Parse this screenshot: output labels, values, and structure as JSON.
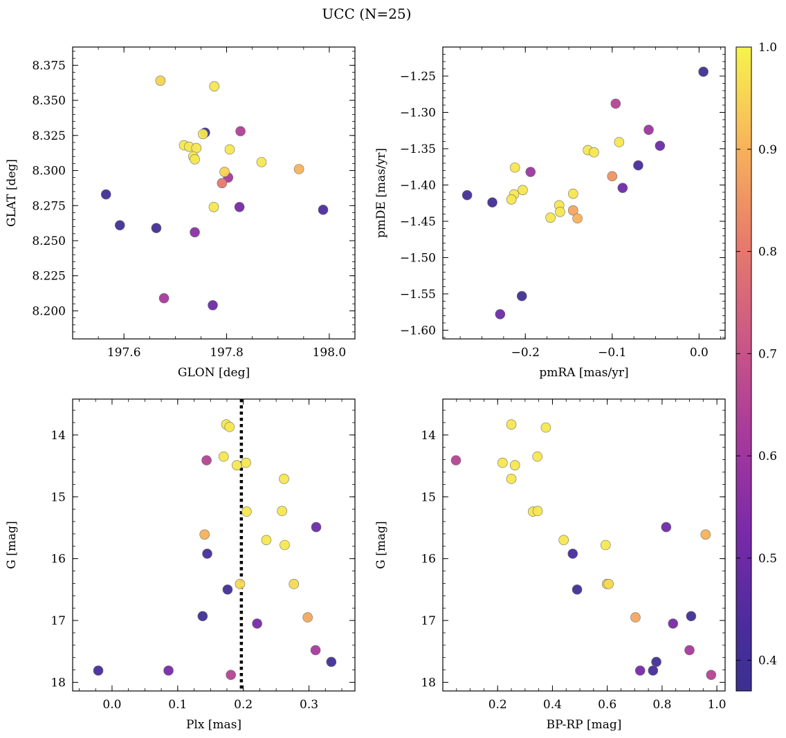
{
  "title": "UCC (N=25)",
  "colorbar": {
    "colormap": "plasma",
    "min": 0.37,
    "max": 1.0,
    "ticks": [
      0.4,
      0.5,
      0.6,
      0.7,
      0.8,
      0.9,
      1.0
    ],
    "tick_labels": [
      "0.4",
      "0.5",
      "0.6",
      "0.7",
      "0.8",
      "0.9",
      "1.0"
    ]
  },
  "chart_data": [
    {
      "type": "scatter",
      "xlabel": "GLON [deg]",
      "ylabel": "GLAT [deg]",
      "xlim": [
        197.5,
        198.05
      ],
      "ylim": [
        8.18,
        8.388
      ],
      "xticks": [
        197.6,
        197.8,
        198.0
      ],
      "xtick_labels": [
        "197.6",
        "197.8",
        "198.0"
      ],
      "yticks": [
        8.2,
        8.225,
        8.25,
        8.275,
        8.3,
        8.325,
        8.35,
        8.375
      ],
      "ytick_labels": [
        "8.200",
        "8.225",
        "8.250",
        "8.275",
        "8.300",
        "8.325",
        "8.350",
        "8.375"
      ],
      "y_inverted": false,
      "points": [
        {
          "x": 197.565,
          "y": 8.283,
          "c": 0.4
        },
        {
          "x": 197.592,
          "y": 8.261,
          "c": 0.4
        },
        {
          "x": 197.663,
          "y": 8.259,
          "c": 0.4
        },
        {
          "x": 197.758,
          "y": 8.327,
          "c": 0.4
        },
        {
          "x": 197.988,
          "y": 8.272,
          "c": 0.44
        },
        {
          "x": 197.671,
          "y": 8.364,
          "c": 0.95
        },
        {
          "x": 197.776,
          "y": 8.36,
          "c": 0.98
        },
        {
          "x": 197.754,
          "y": 8.326,
          "c": 0.98
        },
        {
          "x": 197.827,
          "y": 8.328,
          "c": 0.64
        },
        {
          "x": 197.717,
          "y": 8.318,
          "c": 0.98
        },
        {
          "x": 197.727,
          "y": 8.317,
          "c": 0.98
        },
        {
          "x": 197.741,
          "y": 8.316,
          "c": 0.98
        },
        {
          "x": 197.806,
          "y": 8.315,
          "c": 0.98
        },
        {
          "x": 197.735,
          "y": 8.31,
          "c": 0.98
        },
        {
          "x": 197.738,
          "y": 8.308,
          "c": 0.98
        },
        {
          "x": 197.868,
          "y": 8.306,
          "c": 0.98
        },
        {
          "x": 197.941,
          "y": 8.301,
          "c": 0.9
        },
        {
          "x": 197.796,
          "y": 8.299,
          "c": 0.95
        },
        {
          "x": 197.803,
          "y": 8.295,
          "c": 0.62
        },
        {
          "x": 197.791,
          "y": 8.291,
          "c": 0.8
        },
        {
          "x": 197.775,
          "y": 8.274,
          "c": 0.98
        },
        {
          "x": 197.825,
          "y": 8.274,
          "c": 0.52
        },
        {
          "x": 197.738,
          "y": 8.256,
          "c": 0.56
        },
        {
          "x": 197.678,
          "y": 8.209,
          "c": 0.62
        },
        {
          "x": 197.773,
          "y": 8.204,
          "c": 0.5
        }
      ]
    },
    {
      "type": "scatter",
      "xlabel": "pmRA [mas/yr]",
      "ylabel": "pmDE [mas/yr]",
      "xlim": [
        -0.295,
        0.03
      ],
      "ylim": [
        -1.612,
        -1.21
      ],
      "xticks": [
        -0.2,
        -0.1,
        0.0
      ],
      "xtick_labels": [
        "−0.2",
        "−0.1",
        "0.0"
      ],
      "yticks": [
        -1.6,
        -1.55,
        -1.5,
        -1.45,
        -1.4,
        -1.35,
        -1.3,
        -1.25
      ],
      "ytick_labels": [
        "−1.60",
        "−1.55",
        "−1.50",
        "−1.45",
        "−1.40",
        "−1.35",
        "−1.30",
        "−1.25"
      ],
      "y_inverted": false,
      "points": [
        {
          "x": 0.005,
          "y": -1.244,
          "c": 0.4
        },
        {
          "x": -0.096,
          "y": -1.288,
          "c": 0.65
        },
        {
          "x": -0.058,
          "y": -1.324,
          "c": 0.6
        },
        {
          "x": -0.092,
          "y": -1.341,
          "c": 0.98
        },
        {
          "x": -0.045,
          "y": -1.346,
          "c": 0.5
        },
        {
          "x": -0.128,
          "y": -1.352,
          "c": 0.98
        },
        {
          "x": -0.121,
          "y": -1.355,
          "c": 0.98
        },
        {
          "x": -0.07,
          "y": -1.373,
          "c": 0.42
        },
        {
          "x": -0.212,
          "y": -1.376,
          "c": 0.98
        },
        {
          "x": -0.194,
          "y": -1.382,
          "c": 0.6
        },
        {
          "x": -0.1,
          "y": -1.388,
          "c": 0.85
        },
        {
          "x": -0.088,
          "y": -1.404,
          "c": 0.5
        },
        {
          "x": -0.203,
          "y": -1.407,
          "c": 0.98
        },
        {
          "x": -0.145,
          "y": -1.412,
          "c": 0.98
        },
        {
          "x": -0.213,
          "y": -1.413,
          "c": 0.98
        },
        {
          "x": -0.267,
          "y": -1.414,
          "c": 0.4
        },
        {
          "x": -0.216,
          "y": -1.42,
          "c": 0.98
        },
        {
          "x": -0.238,
          "y": -1.424,
          "c": 0.4
        },
        {
          "x": -0.161,
          "y": -1.428,
          "c": 0.98
        },
        {
          "x": -0.145,
          "y": -1.435,
          "c": 0.88
        },
        {
          "x": -0.16,
          "y": -1.437,
          "c": 0.98
        },
        {
          "x": -0.171,
          "y": -1.445,
          "c": 0.98
        },
        {
          "x": -0.14,
          "y": -1.446,
          "c": 0.9
        },
        {
          "x": -0.204,
          "y": -1.553,
          "c": 0.4
        },
        {
          "x": -0.229,
          "y": -1.578,
          "c": 0.5
        }
      ]
    },
    {
      "type": "scatter",
      "xlabel": "Plx [mas]",
      "ylabel": "G [mag]",
      "xlim": [
        -0.06,
        0.37
      ],
      "ylim": [
        13.42,
        18.14
      ],
      "xticks": [
        0.0,
        0.1,
        0.2,
        0.3
      ],
      "xtick_labels": [
        "0.0",
        "0.1",
        "0.2",
        "0.3"
      ],
      "yticks": [
        14,
        15,
        16,
        17,
        18
      ],
      "ytick_labels": [
        "14",
        "15",
        "16",
        "17",
        "18"
      ],
      "y_inverted": true,
      "vline": {
        "x": 0.197,
        "style": "dotted",
        "color": "#000000"
      },
      "points": [
        {
          "x": 0.174,
          "y": 13.83,
          "c": 0.98
        },
        {
          "x": 0.179,
          "y": 13.87,
          "c": 0.98
        },
        {
          "x": 0.144,
          "y": 14.41,
          "c": 0.65
        },
        {
          "x": 0.17,
          "y": 14.35,
          "c": 0.98
        },
        {
          "x": 0.19,
          "y": 14.49,
          "c": 0.98
        },
        {
          "x": 0.204,
          "y": 14.45,
          "c": 0.98
        },
        {
          "x": 0.262,
          "y": 14.71,
          "c": 0.98
        },
        {
          "x": 0.205,
          "y": 15.24,
          "c": 0.98
        },
        {
          "x": 0.259,
          "y": 15.23,
          "c": 0.98
        },
        {
          "x": 0.311,
          "y": 15.49,
          "c": 0.5
        },
        {
          "x": 0.141,
          "y": 15.61,
          "c": 0.9
        },
        {
          "x": 0.235,
          "y": 15.7,
          "c": 0.98
        },
        {
          "x": 0.263,
          "y": 15.78,
          "c": 0.98
        },
        {
          "x": 0.145,
          "y": 15.92,
          "c": 0.42
        },
        {
          "x": 0.195,
          "y": 16.41,
          "c": 0.96
        },
        {
          "x": 0.277,
          "y": 16.41,
          "c": 0.96
        },
        {
          "x": 0.176,
          "y": 16.5,
          "c": 0.4
        },
        {
          "x": 0.138,
          "y": 16.93,
          "c": 0.4
        },
        {
          "x": 0.298,
          "y": 16.95,
          "c": 0.88
        },
        {
          "x": 0.221,
          "y": 17.05,
          "c": 0.52
        },
        {
          "x": 0.31,
          "y": 17.48,
          "c": 0.62
        },
        {
          "x": 0.334,
          "y": 17.67,
          "c": 0.4
        },
        {
          "x": -0.021,
          "y": 17.81,
          "c": 0.42
        },
        {
          "x": 0.086,
          "y": 17.81,
          "c": 0.52
        },
        {
          "x": 0.181,
          "y": 17.88,
          "c": 0.65
        }
      ]
    },
    {
      "type": "scatter",
      "xlabel": "BP-RP [mag]",
      "ylabel": "G [mag]",
      "xlim": [
        0.0,
        1.03
      ],
      "ylim": [
        13.42,
        18.14
      ],
      "xticks": [
        0.2,
        0.4,
        0.6,
        0.8,
        1.0
      ],
      "xtick_labels": [
        "0.2",
        "0.4",
        "0.6",
        "0.8",
        "1.0"
      ],
      "yticks": [
        14,
        15,
        16,
        17,
        18
      ],
      "ytick_labels": [
        "14",
        "15",
        "16",
        "17",
        "18"
      ],
      "y_inverted": true,
      "points": [
        {
          "x": 0.25,
          "y": 13.83,
          "c": 0.98
        },
        {
          "x": 0.376,
          "y": 13.88,
          "c": 0.98
        },
        {
          "x": 0.048,
          "y": 14.41,
          "c": 0.65
        },
        {
          "x": 0.345,
          "y": 14.35,
          "c": 0.98
        },
        {
          "x": 0.218,
          "y": 14.45,
          "c": 0.98
        },
        {
          "x": 0.263,
          "y": 14.49,
          "c": 0.98
        },
        {
          "x": 0.25,
          "y": 14.71,
          "c": 0.98
        },
        {
          "x": 0.329,
          "y": 15.24,
          "c": 0.98
        },
        {
          "x": 0.346,
          "y": 15.23,
          "c": 0.98
        },
        {
          "x": 0.815,
          "y": 15.49,
          "c": 0.5
        },
        {
          "x": 0.959,
          "y": 15.61,
          "c": 0.9
        },
        {
          "x": 0.441,
          "y": 15.7,
          "c": 0.98
        },
        {
          "x": 0.594,
          "y": 15.78,
          "c": 0.98
        },
        {
          "x": 0.474,
          "y": 15.92,
          "c": 0.42
        },
        {
          "x": 0.599,
          "y": 16.41,
          "c": 0.96
        },
        {
          "x": 0.605,
          "y": 16.41,
          "c": 0.96
        },
        {
          "x": 0.49,
          "y": 16.5,
          "c": 0.4
        },
        {
          "x": 0.906,
          "y": 16.93,
          "c": 0.4
        },
        {
          "x": 0.703,
          "y": 16.95,
          "c": 0.88
        },
        {
          "x": 0.84,
          "y": 17.05,
          "c": 0.52
        },
        {
          "x": 0.9,
          "y": 17.48,
          "c": 0.62
        },
        {
          "x": 0.779,
          "y": 17.67,
          "c": 0.4
        },
        {
          "x": 0.767,
          "y": 17.81,
          "c": 0.42
        },
        {
          "x": 0.72,
          "y": 17.81,
          "c": 0.52
        },
        {
          "x": 0.979,
          "y": 17.88,
          "c": 0.65
        }
      ]
    }
  ]
}
